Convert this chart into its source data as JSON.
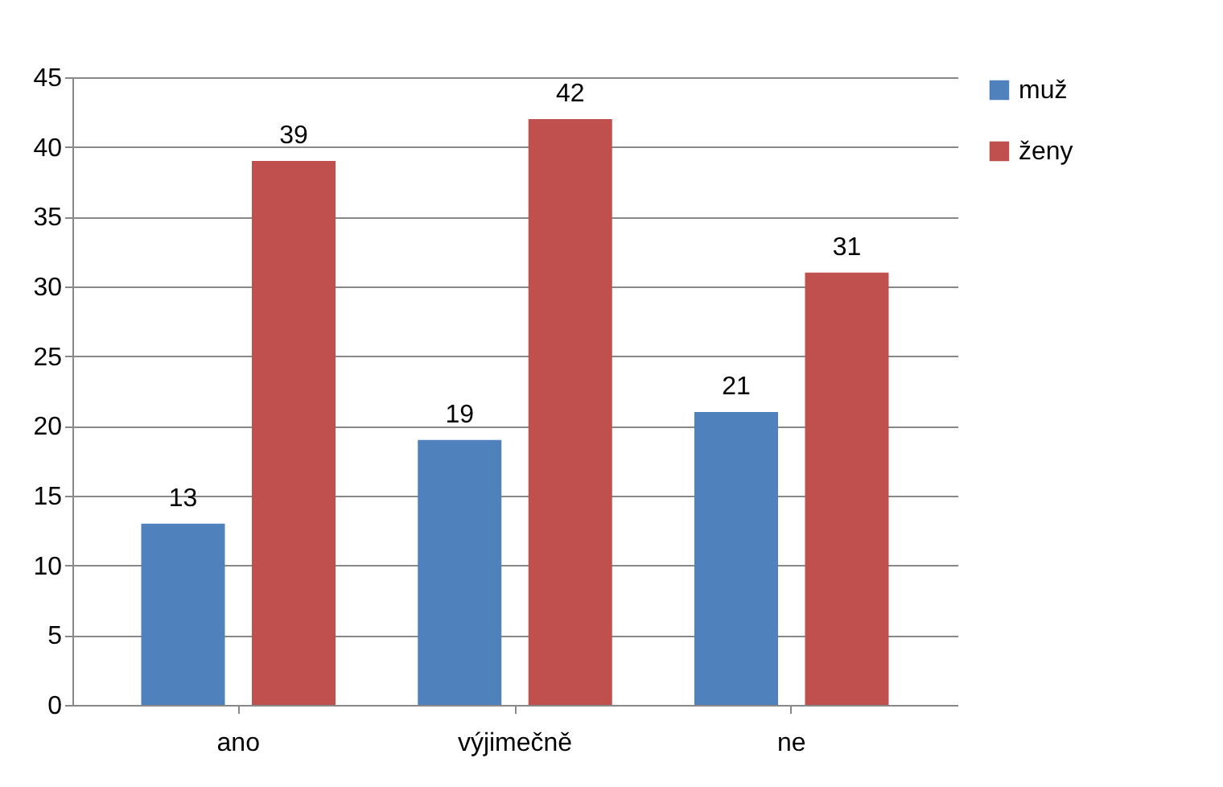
{
  "chart_data": {
    "type": "bar",
    "categories": [
      "ano",
      "výjimečně",
      "ne"
    ],
    "series": [
      {
        "name": "muž",
        "color": "#4f81bd",
        "values": [
          13,
          19,
          21
        ]
      },
      {
        "name": "ženy",
        "color": "#c0504d",
        "values": [
          39,
          42,
          31
        ]
      }
    ],
    "ylim": [
      0,
      45
    ],
    "yticks": [
      0,
      5,
      10,
      15,
      20,
      25,
      30,
      35,
      40,
      45
    ],
    "grid": "y",
    "legend": "right",
    "data_labels": true
  }
}
